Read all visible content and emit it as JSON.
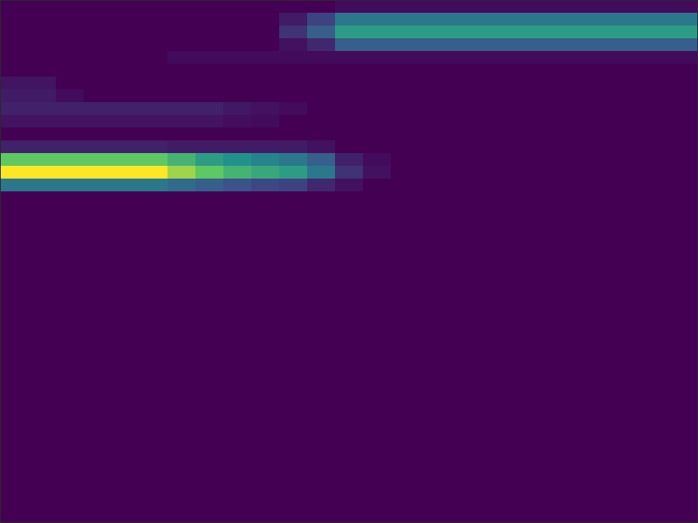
{
  "chart_data": {
    "type": "heatmap",
    "tick_labels": false,
    "color_range": [
      0,
      1
    ],
    "cells": [
      [
        0,
        0,
        0,
        0,
        0,
        0,
        0,
        0,
        0,
        0,
        0,
        0,
        0.03,
        0.03,
        0.03,
        0.03,
        0.03,
        0.03,
        0.03,
        0.03,
        0.03,
        0.03,
        0.03,
        0.03,
        0.03
      ],
      [
        0,
        0,
        0,
        0,
        0,
        0,
        0,
        0,
        0,
        0,
        0.08,
        0.2,
        0.4,
        0.4,
        0.4,
        0.4,
        0.4,
        0.4,
        0.4,
        0.4,
        0.4,
        0.4,
        0.4,
        0.4,
        0.4
      ],
      [
        0,
        0,
        0,
        0,
        0,
        0,
        0,
        0,
        0,
        0,
        0.15,
        0.3,
        0.55,
        0.55,
        0.55,
        0.55,
        0.55,
        0.55,
        0.55,
        0.55,
        0.55,
        0.55,
        0.55,
        0.55,
        0.55
      ],
      [
        0,
        0,
        0,
        0,
        0,
        0,
        0,
        0,
        0,
        0,
        0.05,
        0.12,
        0.3,
        0.3,
        0.3,
        0.3,
        0.3,
        0.3,
        0.3,
        0.3,
        0.3,
        0.3,
        0.3,
        0.3,
        0.3
      ],
      [
        0,
        0,
        0,
        0,
        0,
        0,
        0.03,
        0.03,
        0.03,
        0.03,
        0.03,
        0.03,
        0.03,
        0.03,
        0.03,
        0.03,
        0.03,
        0.03,
        0.03,
        0.03,
        0.03,
        0.03,
        0.03,
        0.03,
        0.03
      ],
      [
        0,
        0,
        0,
        0,
        0,
        0,
        0,
        0,
        0,
        0,
        0,
        0,
        0,
        0,
        0,
        0,
        0,
        0,
        0,
        0,
        0,
        0,
        0,
        0,
        0
      ],
      [
        0.06,
        0.06,
        0,
        0,
        0,
        0,
        0,
        0,
        0,
        0,
        0,
        0,
        0,
        0,
        0,
        0,
        0,
        0,
        0,
        0,
        0,
        0,
        0,
        0,
        0
      ],
      [
        0.08,
        0.08,
        0.03,
        0,
        0,
        0,
        0,
        0,
        0,
        0,
        0,
        0,
        0,
        0,
        0,
        0,
        0,
        0,
        0,
        0,
        0,
        0,
        0,
        0,
        0
      ],
      [
        0.1,
        0.1,
        0.1,
        0.1,
        0.1,
        0.1,
        0.1,
        0.1,
        0.07,
        0.05,
        0.03,
        0,
        0,
        0,
        0,
        0,
        0,
        0,
        0,
        0,
        0,
        0,
        0,
        0,
        0
      ],
      [
        0.06,
        0.06,
        0.06,
        0.06,
        0.06,
        0.06,
        0.06,
        0.06,
        0.04,
        0.03,
        0,
        0,
        0,
        0,
        0,
        0,
        0,
        0,
        0,
        0,
        0,
        0,
        0,
        0,
        0
      ],
      [
        0,
        0,
        0,
        0,
        0,
        0,
        0,
        0,
        0,
        0,
        0,
        0,
        0,
        0,
        0,
        0,
        0,
        0,
        0,
        0,
        0,
        0,
        0,
        0,
        0
      ],
      [
        0.1,
        0.1,
        0.1,
        0.1,
        0.1,
        0.1,
        0.08,
        0.08,
        0.08,
        0.08,
        0.08,
        0.05,
        0,
        0,
        0,
        0,
        0,
        0,
        0,
        0,
        0,
        0,
        0,
        0,
        0
      ],
      [
        0.75,
        0.75,
        0.75,
        0.75,
        0.75,
        0.75,
        0.65,
        0.55,
        0.5,
        0.45,
        0.4,
        0.3,
        0.1,
        0.03,
        0,
        0,
        0,
        0,
        0,
        0,
        0,
        0,
        0,
        0,
        0
      ],
      [
        1,
        1,
        1,
        1,
        1,
        1,
        0.85,
        0.75,
        0.65,
        0.6,
        0.55,
        0.4,
        0.15,
        0.05,
        0,
        0,
        0,
        0,
        0,
        0,
        0,
        0,
        0,
        0,
        0
      ],
      [
        0.4,
        0.4,
        0.4,
        0.4,
        0.4,
        0.4,
        0.35,
        0.3,
        0.25,
        0.22,
        0.2,
        0.12,
        0.05,
        0,
        0,
        0,
        0,
        0,
        0,
        0,
        0,
        0,
        0,
        0,
        0
      ],
      [
        0,
        0,
        0,
        0,
        0,
        0,
        0,
        0,
        0,
        0,
        0,
        0,
        0,
        0,
        0,
        0,
        0,
        0,
        0,
        0,
        0,
        0,
        0,
        0,
        0
      ],
      [
        0,
        0,
        0,
        0,
        0,
        0,
        0,
        0,
        0,
        0,
        0,
        0,
        0,
        0,
        0,
        0,
        0,
        0,
        0,
        0,
        0,
        0,
        0,
        0,
        0
      ],
      [
        0,
        0,
        0,
        0,
        0,
        0,
        0,
        0,
        0,
        0,
        0,
        0,
        0,
        0,
        0,
        0,
        0,
        0,
        0,
        0,
        0,
        0,
        0,
        0,
        0
      ],
      [
        0,
        0,
        0,
        0,
        0,
        0,
        0,
        0,
        0,
        0,
        0,
        0,
        0,
        0,
        0,
        0,
        0,
        0,
        0,
        0,
        0,
        0,
        0,
        0,
        0
      ],
      [
        0,
        0,
        0,
        0,
        0,
        0,
        0,
        0,
        0,
        0,
        0,
        0,
        0,
        0,
        0,
        0,
        0,
        0,
        0,
        0,
        0,
        0,
        0,
        0,
        0
      ],
      [
        0,
        0,
        0,
        0,
        0,
        0,
        0,
        0,
        0,
        0,
        0,
        0,
        0,
        0,
        0,
        0,
        0,
        0,
        0,
        0,
        0,
        0,
        0,
        0,
        0
      ],
      [
        0,
        0,
        0,
        0,
        0,
        0,
        0,
        0,
        0,
        0,
        0,
        0,
        0,
        0,
        0,
        0,
        0,
        0,
        0,
        0,
        0,
        0,
        0,
        0,
        0
      ],
      [
        0,
        0,
        0,
        0,
        0,
        0,
        0,
        0,
        0,
        0,
        0,
        0,
        0,
        0,
        0,
        0,
        0,
        0,
        0,
        0,
        0,
        0,
        0,
        0,
        0
      ],
      [
        0,
        0,
        0,
        0,
        0,
        0,
        0,
        0,
        0,
        0,
        0,
        0,
        0,
        0,
        0,
        0,
        0,
        0,
        0,
        0,
        0,
        0,
        0,
        0,
        0
      ],
      [
        0,
        0,
        0,
        0,
        0,
        0,
        0,
        0,
        0,
        0,
        0,
        0,
        0,
        0,
        0,
        0,
        0,
        0,
        0,
        0,
        0,
        0,
        0,
        0,
        0
      ],
      [
        0,
        0,
        0,
        0,
        0,
        0,
        0,
        0,
        0,
        0,
        0,
        0,
        0,
        0,
        0,
        0,
        0,
        0,
        0,
        0,
        0,
        0,
        0,
        0,
        0
      ],
      [
        0,
        0,
        0,
        0,
        0,
        0,
        0,
        0,
        0,
        0,
        0,
        0,
        0,
        0,
        0,
        0,
        0,
        0,
        0,
        0,
        0,
        0,
        0,
        0,
        0
      ],
      [
        0,
        0,
        0,
        0,
        0,
        0,
        0,
        0,
        0,
        0,
        0,
        0,
        0,
        0,
        0,
        0,
        0,
        0,
        0,
        0,
        0,
        0,
        0,
        0,
        0
      ],
      [
        0,
        0,
        0,
        0,
        0,
        0,
        0,
        0,
        0,
        0,
        0,
        0,
        0,
        0,
        0,
        0,
        0,
        0,
        0,
        0,
        0,
        0,
        0,
        0,
        0
      ],
      [
        0,
        0,
        0,
        0,
        0,
        0,
        0,
        0,
        0,
        0,
        0,
        0,
        0,
        0,
        0,
        0,
        0,
        0,
        0,
        0,
        0,
        0,
        0,
        0,
        0
      ],
      [
        0,
        0,
        0,
        0,
        0,
        0,
        0,
        0,
        0,
        0,
        0,
        0,
        0,
        0,
        0,
        0,
        0,
        0,
        0,
        0,
        0,
        0,
        0,
        0,
        0
      ],
      [
        0,
        0,
        0,
        0,
        0,
        0,
        0,
        0,
        0,
        0,
        0,
        0,
        0,
        0,
        0,
        0,
        0,
        0,
        0,
        0,
        0,
        0,
        0,
        0,
        0
      ],
      [
        0,
        0,
        0,
        0,
        0,
        0,
        0,
        0,
        0,
        0,
        0,
        0,
        0,
        0,
        0,
        0,
        0,
        0,
        0,
        0,
        0,
        0,
        0,
        0,
        0
      ],
      [
        0,
        0,
        0,
        0,
        0,
        0,
        0,
        0,
        0,
        0,
        0,
        0,
        0,
        0,
        0,
        0,
        0,
        0,
        0,
        0,
        0,
        0,
        0,
        0,
        0
      ],
      [
        0,
        0,
        0,
        0,
        0,
        0,
        0,
        0,
        0,
        0,
        0,
        0,
        0,
        0,
        0,
        0,
        0,
        0,
        0,
        0,
        0,
        0,
        0,
        0,
        0
      ],
      [
        0,
        0,
        0,
        0,
        0,
        0,
        0,
        0,
        0,
        0,
        0,
        0,
        0,
        0,
        0,
        0,
        0,
        0,
        0,
        0,
        0,
        0,
        0,
        0,
        0
      ],
      [
        0,
        0,
        0,
        0,
        0,
        0,
        0,
        0,
        0,
        0,
        0,
        0,
        0,
        0,
        0,
        0,
        0,
        0,
        0,
        0,
        0,
        0,
        0,
        0,
        0
      ],
      [
        0,
        0,
        0,
        0,
        0,
        0,
        0,
        0,
        0,
        0,
        0,
        0,
        0,
        0,
        0,
        0,
        0,
        0,
        0,
        0,
        0,
        0,
        0,
        0,
        0
      ],
      [
        0,
        0,
        0,
        0,
        0,
        0,
        0,
        0,
        0,
        0,
        0,
        0,
        0,
        0,
        0,
        0,
        0,
        0,
        0,
        0,
        0,
        0,
        0,
        0,
        0
      ],
      [
        0,
        0,
        0,
        0,
        0,
        0,
        0,
        0,
        0,
        0,
        0,
        0,
        0,
        0,
        0,
        0,
        0,
        0,
        0,
        0,
        0,
        0,
        0,
        0,
        0
      ],
      [
        0,
        0,
        0,
        0,
        0,
        0,
        0,
        0,
        0,
        0,
        0,
        0,
        0,
        0,
        0,
        0,
        0,
        0,
        0,
        0,
        0,
        0,
        0,
        0,
        0
      ]
    ]
  }
}
